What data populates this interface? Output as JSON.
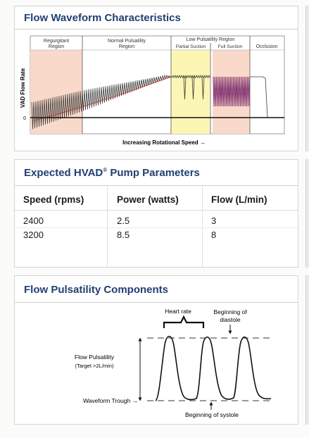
{
  "panel1": {
    "title": "Flow Waveform Characteristics",
    "regions": {
      "regurgitant": [
        "Regurgitant",
        "Region"
      ],
      "normal": [
        "Normal Pulsatility",
        "Region"
      ],
      "low": "Low Pulsatility Region",
      "partial": "Partial Suction",
      "full": "Full Suction",
      "occlusion": "Occlusion"
    },
    "y_axis_label": "VAD Flow Rate",
    "zero_label": "0",
    "x_axis_label": "Increasing Rotational Speed →"
  },
  "panel2": {
    "title": "Expected HVAD",
    "title_reg": "®",
    "title_tail": " Pump Parameters",
    "columns": [
      "Speed (rpms)",
      "Power (watts)",
      "Flow (L/min)"
    ],
    "rows": [
      [
        "2400",
        "2.5",
        "3"
      ],
      [
        "3200",
        "8.5",
        "8"
      ]
    ]
  },
  "panel3": {
    "title": "Flow Pulsatility Components",
    "labels": {
      "heart_rate": "Heart rate",
      "beginning_diastole": [
        "Beginning of",
        "diastole"
      ],
      "flow_pulsatility": "Flow Pulsatility",
      "target": "(Target >2L/min)",
      "waveform_trough": "Waveform Trough →",
      "beginning_systole": "Beginning of systole"
    }
  },
  "colors": {
    "title": "#213f73",
    "pink_region": "#f9d9c9",
    "yellow_region": "#fbf6b3",
    "waveform": "#3a3a3a",
    "suction_wave": "#7a2a6a",
    "trend_line": "#c0392b"
  }
}
